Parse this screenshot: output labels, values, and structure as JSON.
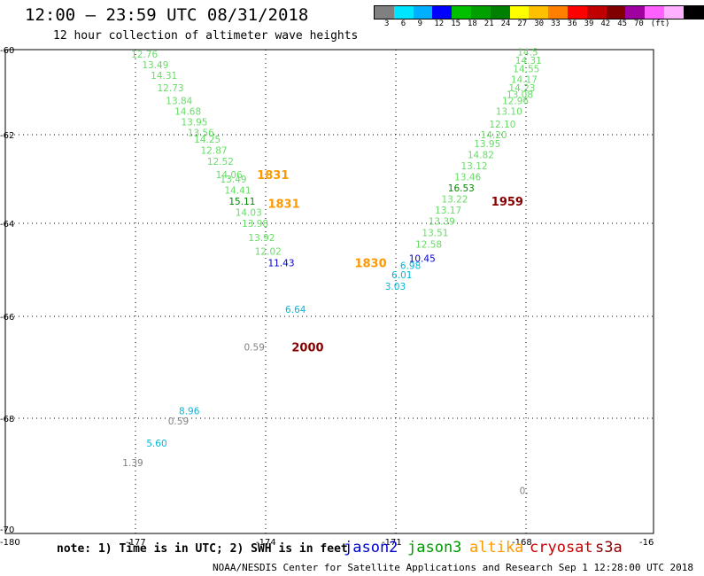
{
  "header": {
    "title": "12:00 – 23:59 UTC 08/31/2018",
    "subtitle": "12 hour collection of altimeter wave heights"
  },
  "colorbar": {
    "colors": [
      "#808080",
      "#00e5ff",
      "#00b0ff",
      "#0000ff",
      "#00c000",
      "#00a000",
      "#008000",
      "#ffff00",
      "#ffc000",
      "#ff8000",
      "#ff0000",
      "#c00000",
      "#800000",
      "#a000a0",
      "#ff60ff",
      "#ffb0ff",
      "#000000"
    ],
    "labels": [
      "3",
      "6",
      "9",
      "12",
      "15",
      "18",
      "21",
      "24",
      "27",
      "30",
      "33",
      "36",
      "39",
      "42",
      "45",
      "70",
      "(ft)"
    ]
  },
  "axes": {
    "x_ticks": [
      "-180",
      "-177",
      "-174",
      "-171",
      "-168",
      "-16"
    ],
    "y_ticks": [
      "-60",
      "-62",
      "-64",
      "-66",
      "-68",
      "-70"
    ]
  },
  "wave_heights": [
    {
      "v": "12.76",
      "lon": -177.1,
      "lat": -60.1,
      "c": "#66dd66"
    },
    {
      "v": "13.49",
      "lon": -176.85,
      "lat": -60.35,
      "c": "#66dd66"
    },
    {
      "v": "14.31",
      "lon": -176.65,
      "lat": -60.6,
      "c": "#66dd66"
    },
    {
      "v": "12.73",
      "lon": -176.5,
      "lat": -60.9,
      "c": "#66dd66"
    },
    {
      "v": "13.84",
      "lon": -176.3,
      "lat": -61.2,
      "c": "#66dd66"
    },
    {
      "v": "14.68",
      "lon": -176.1,
      "lat": -61.45,
      "c": "#66dd66"
    },
    {
      "v": "13.95",
      "lon": -175.95,
      "lat": -61.7,
      "c": "#66dd66"
    },
    {
      "v": "13.56",
      "lon": -175.8,
      "lat": -61.95,
      "c": "#66dd66"
    },
    {
      "v": "14.25",
      "lon": -175.65,
      "lat": -62.1,
      "c": "#66dd66"
    },
    {
      "v": "12.87",
      "lon": -175.5,
      "lat": -62.35,
      "c": "#66dd66"
    },
    {
      "v": "12.52",
      "lon": -175.35,
      "lat": -62.6,
      "c": "#66dd66"
    },
    {
      "v": "14.06",
      "lon": -175.15,
      "lat": -62.9,
      "c": "#66dd66"
    },
    {
      "v": "13.49",
      "lon": -175.05,
      "lat": -63.0,
      "c": "#66dd66"
    },
    {
      "v": "14.41",
      "lon": -174.95,
      "lat": -63.25,
      "c": "#66dd66"
    },
    {
      "v": "15.11",
      "lon": -174.85,
      "lat": -63.5,
      "c": "#008800"
    },
    {
      "v": "14.03",
      "lon": -174.7,
      "lat": -63.75,
      "c": "#66dd66"
    },
    {
      "v": "13.98",
      "lon": -174.55,
      "lat": -64.0,
      "c": "#66dd66"
    },
    {
      "v": "13.92",
      "lon": -174.4,
      "lat": -64.3,
      "c": "#66dd66"
    },
    {
      "v": "12.02",
      "lon": -174.25,
      "lat": -64.6,
      "c": "#66dd66"
    },
    {
      "v": "11.43",
      "lon": -173.95,
      "lat": -64.85,
      "c": "#0000cc"
    },
    {
      "v": "6.64",
      "lon": -173.55,
      "lat": -65.85,
      "c": "#00b8d8"
    },
    {
      "v": "0.59",
      "lon": -174.5,
      "lat": -66.6,
      "c": "#808080"
    },
    {
      "v": "8.96",
      "lon": -176.0,
      "lat": -67.85,
      "c": "#00b8d8"
    },
    {
      "v": "0.59",
      "lon": -176.25,
      "lat": -68.05,
      "c": "#808080"
    },
    {
      "v": "5.60",
      "lon": -176.75,
      "lat": -68.45,
      "c": "#00b8d8"
    },
    {
      "v": "1.39",
      "lon": -177.3,
      "lat": -68.8,
      "c": "#808080"
    },
    {
      "v": "3.03",
      "lon": -171.25,
      "lat": -65.35,
      "c": "#00b8d8"
    },
    {
      "v": "6.01",
      "lon": -171.1,
      "lat": -65.1,
      "c": "#00b8d8"
    },
    {
      "v": "6.98",
      "lon": -170.9,
      "lat": -64.9,
      "c": "#00b8d8"
    },
    {
      "v": "10.45",
      "lon": -170.7,
      "lat": -64.75,
      "c": "#0000cc"
    },
    {
      "v": "12.58",
      "lon": -170.55,
      "lat": -64.45,
      "c": "#66dd66"
    },
    {
      "v": "13.51",
      "lon": -170.4,
      "lat": -64.2,
      "c": "#66dd66"
    },
    {
      "v": "13.39",
      "lon": -170.25,
      "lat": -63.95,
      "c": "#66dd66"
    },
    {
      "v": "13.17",
      "lon": -170.1,
      "lat": -63.7,
      "c": "#66dd66"
    },
    {
      "v": "13.22",
      "lon": -169.95,
      "lat": -63.45,
      "c": "#66dd66"
    },
    {
      "v": "16.53",
      "lon": -169.8,
      "lat": -63.2,
      "c": "#008800"
    },
    {
      "v": "13.46",
      "lon": -169.65,
      "lat": -62.95,
      "c": "#66dd66"
    },
    {
      "v": "13.12",
      "lon": -169.5,
      "lat": -62.7,
      "c": "#66dd66"
    },
    {
      "v": "14.82",
      "lon": -169.35,
      "lat": -62.45,
      "c": "#66dd66"
    },
    {
      "v": "13.95",
      "lon": -169.2,
      "lat": -62.2,
      "c": "#66dd66"
    },
    {
      "v": "14.20",
      "lon": -169.05,
      "lat": -62.0,
      "c": "#66dd66"
    },
    {
      "v": "12.10",
      "lon": -168.85,
      "lat": -61.75,
      "c": "#66dd66"
    },
    {
      "v": "13.10",
      "lon": -168.7,
      "lat": -61.45,
      "c": "#66dd66"
    },
    {
      "v": "12.96",
      "lon": -168.55,
      "lat": -61.2,
      "c": "#66dd66"
    },
    {
      "v": "13.08",
      "lon": -168.45,
      "lat": -61.05,
      "c": "#66dd66"
    },
    {
      "v": "14.23",
      "lon": -168.4,
      "lat": -60.9,
      "c": "#66dd66"
    },
    {
      "v": "14.17",
      "lon": -168.35,
      "lat": -60.7,
      "c": "#66dd66"
    },
    {
      "v": "14.55",
      "lon": -168.3,
      "lat": -60.45,
      "c": "#66dd66"
    },
    {
      "v": "14.31",
      "lon": -168.25,
      "lat": -60.25,
      "c": "#66dd66"
    },
    {
      "v": "14.5",
      "lon": -168.2,
      "lat": -60.05,
      "c": "#66dd66"
    },
    {
      "v": "0.",
      "lon": -168.15,
      "lat": -69.3,
      "c": "#808080"
    }
  ],
  "time_labels": [
    {
      "v": "1831",
      "lon": -174.2,
      "lat": -62.9,
      "c": "#ff9900"
    },
    {
      "v": "1831",
      "lon": -173.95,
      "lat": -63.55,
      "c": "#ff9900"
    },
    {
      "v": "1830",
      "lon": -171.95,
      "lat": -64.85,
      "c": "#ff9900"
    },
    {
      "v": "1959",
      "lon": -168.8,
      "lat": -63.5,
      "c": "#880000"
    },
    {
      "v": "2000",
      "lon": -173.4,
      "lat": -66.6,
      "c": "#880000"
    }
  ],
  "note": "note: 1) Time is in UTC; 2) SWH is in feet",
  "legend": [
    {
      "label": "jason2",
      "c": "#0000cc"
    },
    {
      "label": "jason3",
      "c": "#009900"
    },
    {
      "label": "altika",
      "c": "#ff9900"
    },
    {
      "label": "cryosat",
      "c": "#cc0000"
    },
    {
      "label": "s3a",
      "c": "#880000"
    }
  ],
  "footer": "NOAA/NESDIS Center for Satellite Applications and Research   Sep  1 12:28:00 UTC 2018"
}
